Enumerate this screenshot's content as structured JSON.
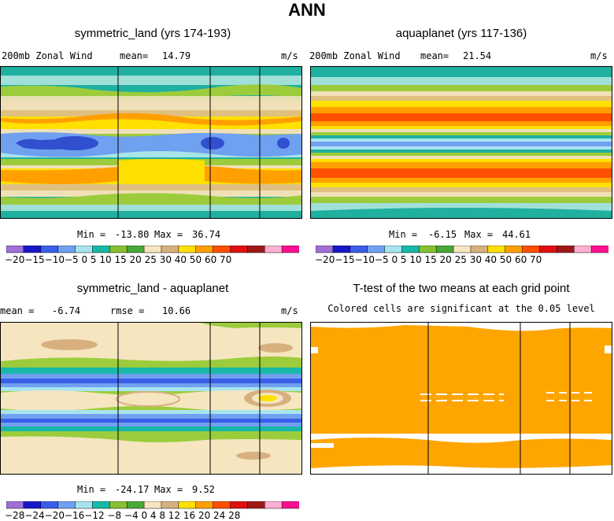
{
  "figure": {
    "title": "ANN"
  },
  "chart_data": [
    {
      "type": "heatmap",
      "title": "symmetric_land (yrs 174-193)",
      "variable": "200mb  Zonal Wind",
      "mean_label": "mean=",
      "mean": "14.79",
      "units": "m/s",
      "min": "-13.80",
      "max": "36.74",
      "legend_levels": [
        -20,
        -15,
        -10,
        -5,
        0,
        5,
        10,
        15,
        20,
        25,
        30,
        40,
        50,
        60,
        70
      ],
      "legend_text": "−20−15−10−5  0   5  10  15  20  25  30  40  50  60  70"
    },
    {
      "type": "heatmap",
      "title": "aquaplanet (yrs 117-136)",
      "variable": "200mb  Zonal Wind",
      "mean_label": "mean=",
      "mean": "21.54",
      "units": "m/s",
      "min": "-6.15",
      "max": "44.61",
      "legend_levels": [
        -20,
        -15,
        -10,
        -5,
        0,
        5,
        10,
        15,
        20,
        25,
        30,
        40,
        50,
        60,
        70
      ],
      "legend_text": "−20−15−10−5  0   5  10  15  20  25  30  40  50  60  70"
    },
    {
      "type": "heatmap",
      "title": "symmetric_land - aquaplanet",
      "mean_label": "mean =",
      "mean": "-6.74",
      "rmse_label": "rmse =",
      "rmse": "10.66",
      "units": "m/s",
      "min": "-24.17",
      "max": "9.52",
      "legend_levels": [
        -28,
        -24,
        -20,
        -16,
        -12,
        -8,
        -4,
        0,
        4,
        8,
        12,
        16,
        20,
        24,
        28
      ],
      "legend_text": "−28−24−20−16−12 −8  −4   0   4   8  12  16  20  24  28"
    },
    {
      "type": "heatmap",
      "title": "T-test of the two means at each grid point",
      "subtitle": "Colored cells are significant at the 0.05 level",
      "significant_color": "#ffa500"
    }
  ],
  "colors": {
    "p1": [
      "#20b0a0",
      "#a0e0d8",
      "#9ccc3c",
      "#f0e0b8",
      "#d8b080",
      "#ffe000",
      "#ffa000",
      "#e0e000",
      "#5878e0",
      "#3050d0"
    ],
    "legend_std": [
      "#a070d8",
      "#1818c8",
      "#3a5ee8",
      "#70a0f0",
      "#a8e4f0",
      "#18b8a8",
      "#88c030",
      "#4aa838",
      "#f5e6c0",
      "#d8b080",
      "#ffe000",
      "#ff9f00",
      "#ff5000",
      "#e01010",
      "#a01818",
      "#ffb0d0",
      "#ff1090"
    ]
  },
  "labels": {
    "min": "Min =",
    "max": "Max ="
  }
}
